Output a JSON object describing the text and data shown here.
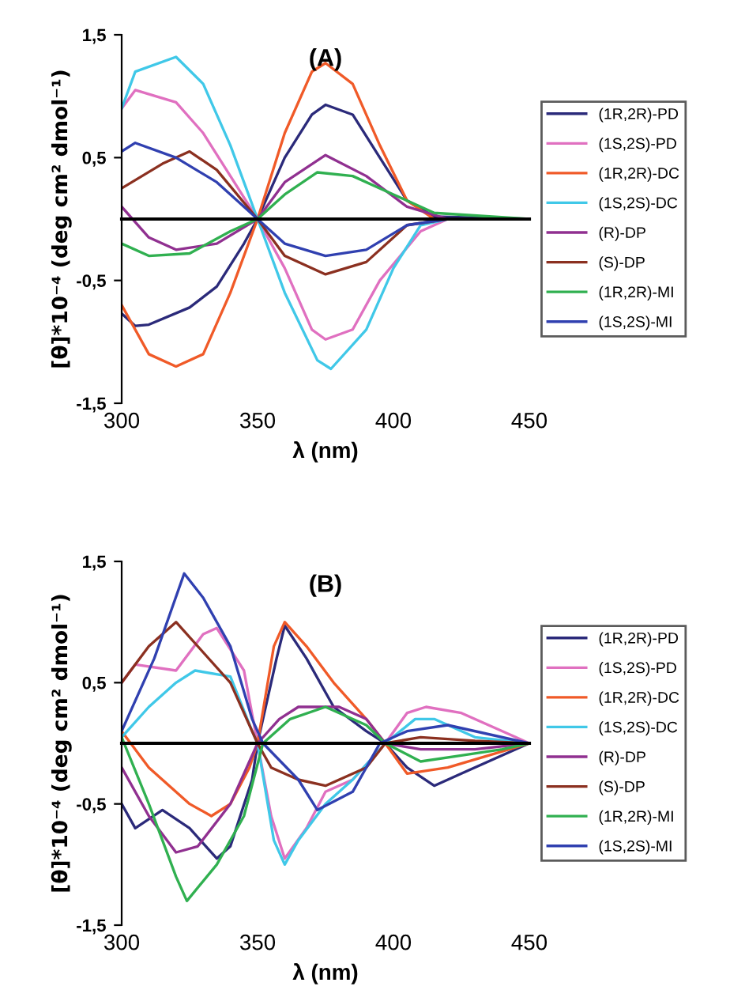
{
  "chart_data": [
    {
      "type": "line",
      "title": "(A)",
      "xlabel": "λ (nm)",
      "ylabel": "[θ]*10⁻⁴ (deg cm² dmol⁻¹)",
      "xlim": [
        300,
        450
      ],
      "ylim": [
        -1.5,
        1.5
      ],
      "xticks": [
        300,
        350,
        400,
        450
      ],
      "yticks": [
        {
          "value": -1.5,
          "label": "-1,5"
        },
        {
          "value": -0.5,
          "label": "-0,5"
        },
        {
          "value": 0.5,
          "label": "0,5"
        },
        {
          "value": 1.5,
          "label": "1,5"
        }
      ],
      "grid": false,
      "legend": "right",
      "marker": "none",
      "line_style": "solid",
      "series": [
        {
          "name": "(1R,2R)-PD",
          "color": "#2b2a7a",
          "x": [
            300,
            305,
            310,
            325,
            335,
            345,
            350,
            360,
            370,
            375,
            385,
            395,
            405,
            415,
            450
          ],
          "values": [
            -0.77,
            -0.87,
            -0.86,
            -0.72,
            -0.55,
            -0.2,
            0,
            0.5,
            0.85,
            0.93,
            0.85,
            0.5,
            0.15,
            0.02,
            0
          ]
        },
        {
          "name": "(1S,2S)-PD",
          "color": "#e070c0",
          "x": [
            300,
            305,
            320,
            330,
            340,
            350,
            360,
            370,
            375,
            385,
            395,
            410,
            420,
            450
          ],
          "values": [
            0.9,
            1.05,
            0.95,
            0.7,
            0.35,
            0,
            -0.4,
            -0.9,
            -0.98,
            -0.9,
            -0.5,
            -0.1,
            0,
            0
          ]
        },
        {
          "name": "(1R,2R)-DC",
          "color": "#f05a28",
          "x": [
            300,
            310,
            320,
            330,
            340,
            350,
            360,
            370,
            375,
            385,
            395,
            405,
            415,
            450
          ],
          "values": [
            -0.7,
            -1.1,
            -1.2,
            -1.1,
            -0.6,
            0,
            0.7,
            1.2,
            1.27,
            1.1,
            0.6,
            0.15,
            0,
            0
          ]
        },
        {
          "name": "(1S,2S)-DC",
          "color": "#40c8e8",
          "x": [
            300,
            305,
            320,
            330,
            340,
            350,
            360,
            372,
            377,
            390,
            400,
            410,
            420,
            450
          ],
          "values": [
            0.9,
            1.2,
            1.32,
            1.1,
            0.6,
            0,
            -0.6,
            -1.15,
            -1.22,
            -0.9,
            -0.4,
            -0.05,
            0,
            0
          ]
        },
        {
          "name": "(R)-DP",
          "color": "#903090",
          "x": [
            300,
            310,
            320,
            335,
            350,
            360,
            375,
            390,
            405,
            420,
            450
          ],
          "values": [
            0.1,
            -0.15,
            -0.25,
            -0.2,
            0,
            0.3,
            0.52,
            0.35,
            0.1,
            0,
            0
          ]
        },
        {
          "name": "(S)-DP",
          "color": "#8b3020",
          "x": [
            300,
            315,
            325,
            335,
            350,
            360,
            375,
            390,
            405,
            420,
            450
          ],
          "values": [
            0.25,
            0.45,
            0.55,
            0.4,
            0,
            -0.3,
            -0.45,
            -0.35,
            -0.05,
            0,
            0
          ]
        },
        {
          "name": "(1R,2R)-MI",
          "color": "#30b050",
          "x": [
            300,
            310,
            325,
            340,
            350,
            360,
            372,
            385,
            400,
            415,
            450
          ],
          "values": [
            -0.2,
            -0.3,
            -0.28,
            -0.1,
            0,
            0.2,
            0.38,
            0.35,
            0.2,
            0.05,
            0
          ]
        },
        {
          "name": "(1S,2S)-MI",
          "color": "#3040b0",
          "x": [
            300,
            305,
            320,
            335,
            350,
            360,
            375,
            390,
            405,
            420,
            450
          ],
          "values": [
            0.55,
            0.62,
            0.5,
            0.3,
            0,
            -0.2,
            -0.3,
            -0.25,
            -0.05,
            0,
            0
          ]
        }
      ]
    },
    {
      "type": "line",
      "title": "(B)",
      "xlabel": "λ (nm)",
      "ylabel": "[θ]*10⁻⁴ (deg cm² dmol⁻¹)",
      "xlim": [
        300,
        450
      ],
      "ylim": [
        -1.5,
        1.5
      ],
      "xticks": [
        300,
        350,
        400,
        450
      ],
      "yticks": [
        {
          "value": -1.5,
          "label": "-1,5"
        },
        {
          "value": -0.5,
          "label": "-0,5"
        },
        {
          "value": 0.5,
          "label": "0,5"
        },
        {
          "value": 1.5,
          "label": "1,5"
        }
      ],
      "grid": false,
      "legend": "right",
      "marker": "none",
      "line_style": "solid",
      "series": [
        {
          "name": "(1R,2R)-PD",
          "color": "#2b2a7a",
          "x": [
            300,
            305,
            315,
            325,
            335,
            340,
            348,
            350,
            357,
            360,
            368,
            378,
            390,
            397,
            405,
            415,
            425,
            440,
            450
          ],
          "values": [
            -0.5,
            -0.7,
            -0.55,
            -0.7,
            -0.95,
            -0.85,
            -0.3,
            0,
            0.7,
            0.97,
            0.7,
            0.3,
            0.1,
            0,
            -0.2,
            -0.35,
            -0.25,
            -0.1,
            0
          ]
        },
        {
          "name": "(1S,2S)-PD",
          "color": "#e070c0",
          "x": [
            300,
            305,
            320,
            330,
            335,
            345,
            350,
            355,
            360,
            368,
            375,
            385,
            397,
            405,
            412,
            425,
            445,
            450
          ],
          "values": [
            0.5,
            0.65,
            0.6,
            0.9,
            0.95,
            0.6,
            0,
            -0.6,
            -0.95,
            -0.7,
            -0.4,
            -0.3,
            0,
            0.25,
            0.3,
            0.25,
            0.05,
            0
          ]
        },
        {
          "name": "(1R,2R)-DC",
          "color": "#f05a28",
          "x": [
            300,
            310,
            325,
            333,
            340,
            347,
            350,
            356,
            360,
            368,
            378,
            390,
            397,
            405,
            420,
            435,
            450
          ],
          "values": [
            0.1,
            -0.2,
            -0.5,
            -0.6,
            -0.5,
            -0.2,
            0,
            0.8,
            1.0,
            0.8,
            0.5,
            0.2,
            0,
            -0.25,
            -0.2,
            -0.1,
            0
          ]
        },
        {
          "name": "(1S,2S)-DC",
          "color": "#40c8e8",
          "x": [
            300,
            310,
            320,
            327,
            340,
            348,
            350,
            356,
            360,
            365,
            375,
            385,
            397,
            408,
            415,
            430,
            450
          ],
          "values": [
            0.05,
            0.3,
            0.5,
            0.6,
            0.55,
            0.1,
            0,
            -0.8,
            -1.0,
            -0.8,
            -0.5,
            -0.3,
            0,
            0.2,
            0.2,
            0.05,
            0
          ]
        },
        {
          "name": "(R)-DP",
          "color": "#903090",
          "x": [
            300,
            310,
            320,
            328,
            340,
            350,
            358,
            365,
            380,
            390,
            397,
            410,
            430,
            450
          ],
          "values": [
            -0.2,
            -0.6,
            -0.9,
            -0.85,
            -0.5,
            0,
            0.2,
            0.3,
            0.3,
            0.2,
            0,
            -0.05,
            -0.05,
            0
          ]
        },
        {
          "name": "(S)-DP",
          "color": "#8b3020",
          "x": [
            300,
            310,
            320,
            330,
            340,
            350,
            355,
            365,
            375,
            390,
            397,
            410,
            430,
            450
          ],
          "values": [
            0.5,
            0.8,
            1.0,
            0.75,
            0.5,
            0,
            -0.2,
            -0.3,
            -0.35,
            -0.2,
            0,
            0.05,
            0.02,
            0
          ]
        },
        {
          "name": "(1R,2R)-MI",
          "color": "#30b050",
          "x": [
            300,
            310,
            320,
            324,
            335,
            345,
            352,
            362,
            375,
            390,
            397,
            410,
            425,
            440,
            450
          ],
          "values": [
            0.05,
            -0.5,
            -1.1,
            -1.3,
            -1.0,
            -0.6,
            0,
            0.2,
            0.3,
            0.15,
            0,
            -0.15,
            -0.1,
            -0.05,
            0
          ]
        },
        {
          "name": "(1S,2S)-MI",
          "color": "#3040b0",
          "x": [
            300,
            312,
            323,
            330,
            340,
            348,
            352,
            365,
            372,
            385,
            395,
            405,
            420,
            450
          ],
          "values": [
            0.1,
            0.7,
            1.4,
            1.2,
            0.8,
            0.2,
            0,
            -0.3,
            -0.55,
            -0.4,
            0,
            0.1,
            0.15,
            0
          ]
        }
      ]
    }
  ]
}
